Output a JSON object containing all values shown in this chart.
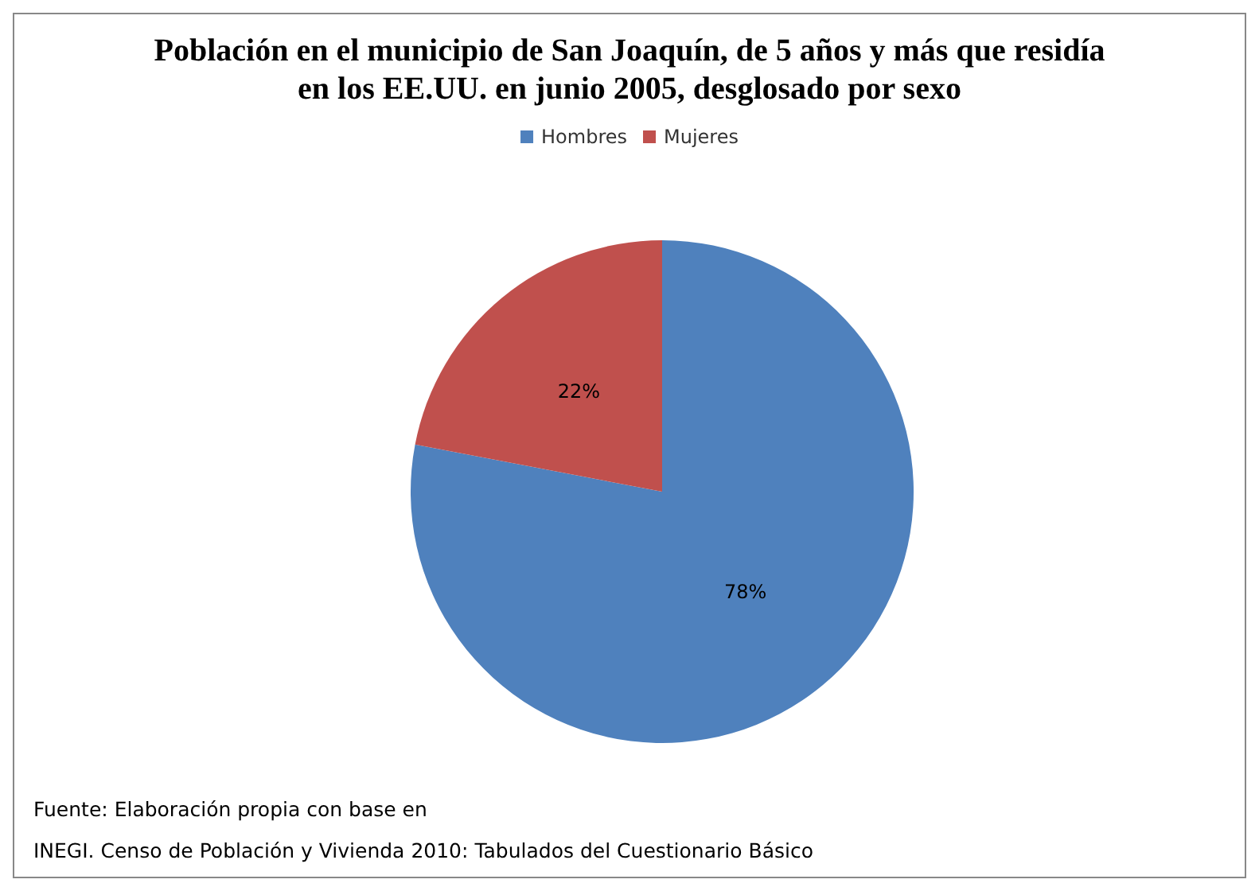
{
  "chart_data": {
    "type": "pie",
    "title": "Población en el municipio de San Joaquín, de 5 años y más que residía\nen los EE.UU. en junio 2005, desglosado por sexo",
    "categories": [
      "Hombres",
      "Mujeres"
    ],
    "values": [
      78,
      22
    ],
    "colors": [
      "#4f81bd",
      "#c0504d"
    ],
    "value_labels": [
      "78%",
      "22%"
    ],
    "legend": "top",
    "annotations": [
      "Fuente: Elaboración propia con base en",
      "INEGI. Censo de Población y Vivienda 2010: Tabulados del Cuestionario Básico"
    ]
  }
}
